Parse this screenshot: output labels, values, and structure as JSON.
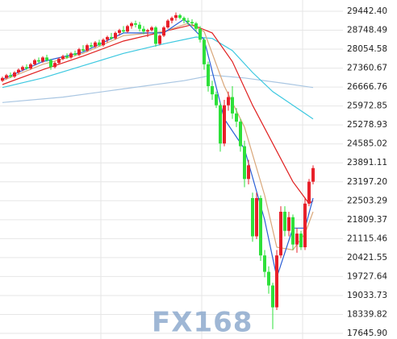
{
  "chart_data": {
    "type": "candlestick",
    "ylim": [
      17645.9,
      29442.4
    ],
    "yticks": [
      {
        "value": 29442.4,
        "label": "29442.40"
      },
      28748.49,
      28054.58,
      27360.67,
      26666.76,
      25972.85,
      25278.93,
      24585.02,
      23891.11,
      {
        "value": 23197.2,
        "label": "23197.20"
      },
      22503.29,
      21809.37,
      21115.46,
      20421.55,
      19727.64,
      19033.73,
      18339.82,
      {
        "value": 17645.9,
        "label": "17645.90"
      }
    ],
    "grid": true,
    "up_color": "#e8202a",
    "down_color": "#2ee03a",
    "open": [
      26900,
      27000,
      27100,
      27050,
      27200,
      27300,
      27400,
      27350,
      27500,
      27650,
      27600,
      27750,
      27650,
      27400,
      27550,
      27700,
      27800,
      27750,
      27900,
      27850,
      28050,
      28000,
      28200,
      28150,
      28300,
      28200,
      28400,
      28500,
      28450,
      28650,
      28750,
      28700,
      28900,
      29000,
      28950,
      28800,
      28700,
      28750,
      28850,
      28250,
      28550,
      28850,
      29100,
      29200,
      29300,
      29200,
      29100,
      29050,
      29000,
      28800,
      28400,
      27500,
      26700,
      26400,
      26000,
      24600,
      26000,
      26300,
      25700,
      25400,
      24500,
      23300,
      22600,
      21200,
      22600,
      20500,
      19900,
      19400,
      18600,
      20500,
      22100,
      21400,
      21900,
      20900,
      21300,
      20800,
      22400,
      23200
    ],
    "high": [
      27050,
      27150,
      27200,
      27250,
      27350,
      27450,
      27500,
      27550,
      27700,
      27750,
      27800,
      27850,
      27700,
      27600,
      27750,
      27850,
      27900,
      27950,
      28000,
      28100,
      28200,
      28250,
      28300,
      28350,
      28400,
      28450,
      28550,
      28650,
      28700,
      28800,
      28900,
      28950,
      29050,
      29100,
      29050,
      28900,
      28800,
      28900,
      28900,
      28600,
      28900,
      29150,
      29250,
      29400,
      29350,
      29250,
      29200,
      29150,
      29050,
      28900,
      28450,
      27600,
      26900,
      26500,
      26100,
      26200,
      26500,
      26700,
      25900,
      25500,
      24700,
      24000,
      22800,
      22800,
      22700,
      20700,
      20100,
      19500,
      20700,
      22300,
      22300,
      22100,
      22000,
      21500,
      21400,
      22600,
      23300,
      23800
    ],
    "low": [
      26850,
      26950,
      27000,
      27000,
      27150,
      27250,
      27300,
      27300,
      27450,
      27550,
      27550,
      27600,
      27300,
      27350,
      27500,
      27650,
      27700,
      27700,
      27800,
      27800,
      27950,
      27950,
      28100,
      28100,
      28150,
      28150,
      28300,
      28400,
      28400,
      28550,
      28650,
      28650,
      28800,
      28850,
      28700,
      28600,
      28500,
      28700,
      28150,
      28200,
      28500,
      28800,
      29000,
      29100,
      29150,
      29000,
      28950,
      28900,
      28700,
      28300,
      27300,
      26500,
      26200,
      25900,
      24300,
      24500,
      25800,
      25500,
      25200,
      24300,
      23000,
      23100,
      21000,
      21100,
      20300,
      19700,
      19100,
      17800,
      18500,
      20400,
      21200,
      21200,
      20700,
      20600,
      20700,
      20700,
      22300,
      23100
    ],
    "close": [
      27000,
      27100,
      27050,
      27200,
      27300,
      27400,
      27350,
      27500,
      27650,
      27600,
      27750,
      27650,
      27400,
      27550,
      27700,
      27800,
      27750,
      27900,
      27850,
      28050,
      28000,
      28200,
      28150,
      28300,
      28200,
      28400,
      28500,
      28450,
      28650,
      28750,
      28700,
      28900,
      29000,
      28950,
      28800,
      28700,
      28750,
      28850,
      28250,
      28550,
      28850,
      29100,
      29200,
      29300,
      29200,
      29100,
      29050,
      29000,
      28800,
      28400,
      27500,
      26700,
      26400,
      26000,
      24600,
      26000,
      26300,
      25700,
      25400,
      24500,
      23300,
      23800,
      21200,
      22600,
      20500,
      19900,
      19400,
      18600,
      20500,
      22100,
      21400,
      21900,
      20900,
      21300,
      20800,
      22400,
      23200,
      23700
    ],
    "lines": [
      {
        "color": "#a9c6e2",
        "x": [
          0,
          15,
          30,
          45,
          52,
          60,
          70,
          77
        ],
        "values": [
          26100,
          26300,
          26600,
          26900,
          27100,
          27000,
          26800,
          26650
        ]
      },
      {
        "color": "#3cc8e0",
        "x": [
          0,
          10,
          20,
          30,
          40,
          48,
          52,
          57,
          62,
          67,
          72,
          77
        ],
        "values": [
          26650,
          27000,
          27450,
          27900,
          28250,
          28500,
          28450,
          28000,
          27200,
          26500,
          26000,
          25500
        ]
      },
      {
        "color": "#e02020",
        "x": [
          0,
          10,
          20,
          30,
          40,
          47,
          52,
          57,
          62,
          67,
          72,
          76,
          77
        ],
        "values": [
          26760,
          27300,
          27800,
          28350,
          28700,
          28950,
          28650,
          27600,
          26000,
          24600,
          23200,
          22400,
          22500
        ]
      },
      {
        "color": "#d9a77a",
        "x": [
          0,
          10,
          20,
          30,
          40,
          46,
          50,
          55,
          60,
          65,
          68,
          72,
          75,
          77
        ],
        "values": [
          26900,
          27500,
          27900,
          28550,
          28700,
          29000,
          28700,
          26700,
          25200,
          22700,
          20800,
          20700,
          21300,
          22100
        ]
      },
      {
        "color": "#2a5fd6",
        "x": [
          0,
          10,
          20,
          30,
          40,
          45,
          50,
          55,
          60,
          65,
          68,
          72,
          75,
          77
        ],
        "values": [
          26950,
          27600,
          27950,
          28650,
          28650,
          29150,
          28400,
          25500,
          24400,
          21800,
          19700,
          21500,
          21500,
          22600
        ]
      }
    ],
    "watermark": "FX168"
  }
}
